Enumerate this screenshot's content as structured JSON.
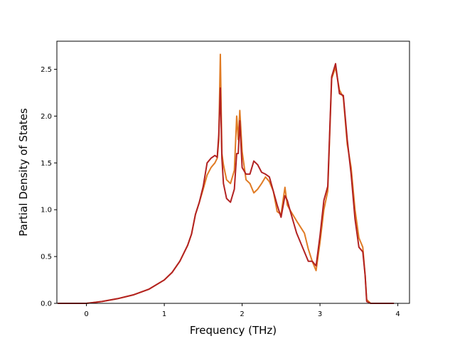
{
  "chart_data": {
    "type": "line",
    "title": "",
    "xlabel": "Frequency (THz)",
    "ylabel": "Partial Density of States",
    "xlim": [
      -0.38,
      4.15
    ],
    "ylim": [
      0,
      2.8
    ],
    "xticks": [
      0,
      1,
      2,
      3,
      4
    ],
    "xtick_labels": [
      "0",
      "1",
      "2",
      "3",
      "4"
    ],
    "yticks": [
      0.0,
      0.5,
      1.0,
      1.5,
      2.0,
      2.5
    ],
    "ytick_labels": [
      "0.0",
      "0.5",
      "1.0",
      "1.5",
      "2.0",
      "2.5"
    ],
    "grid": false,
    "legend": "none",
    "series": [
      {
        "color": "#e07b24",
        "x": [
          -0.37,
          -0.2,
          0.0,
          0.2,
          0.4,
          0.6,
          0.8,
          1.0,
          1.1,
          1.2,
          1.3,
          1.35,
          1.4,
          1.45,
          1.5,
          1.55,
          1.6,
          1.65,
          1.68,
          1.7,
          1.72,
          1.74,
          1.76,
          1.8,
          1.85,
          1.9,
          1.93,
          1.95,
          1.97,
          2.0,
          2.05,
          2.1,
          2.15,
          2.2,
          2.25,
          2.3,
          2.35,
          2.4,
          2.45,
          2.5,
          2.55,
          2.58,
          2.62,
          2.7,
          2.8,
          2.85,
          2.9,
          2.95,
          3.0,
          3.05,
          3.1,
          3.15,
          3.2,
          3.25,
          3.3,
          3.35,
          3.4,
          3.45,
          3.5,
          3.55,
          3.58,
          3.6,
          3.65,
          3.7,
          3.8,
          3.95
        ],
        "y": [
          0.0,
          0.0,
          0.0,
          0.02,
          0.05,
          0.09,
          0.15,
          0.25,
          0.33,
          0.45,
          0.62,
          0.74,
          0.95,
          1.08,
          1.22,
          1.37,
          1.45,
          1.5,
          1.55,
          1.75,
          2.66,
          1.6,
          1.48,
          1.32,
          1.28,
          1.42,
          2.0,
          1.75,
          2.06,
          1.62,
          1.32,
          1.28,
          1.18,
          1.22,
          1.28,
          1.35,
          1.3,
          1.2,
          0.98,
          0.95,
          1.24,
          1.05,
          0.99,
          0.88,
          0.75,
          0.58,
          0.45,
          0.35,
          0.65,
          1.0,
          1.2,
          2.4,
          2.52,
          2.28,
          2.2,
          1.7,
          1.45,
          1.0,
          0.7,
          0.6,
          0.3,
          0.04,
          0.0,
          0.0,
          0.0,
          0.0
        ]
      },
      {
        "color": "#b22222",
        "x": [
          -0.37,
          -0.2,
          0.0,
          0.2,
          0.4,
          0.6,
          0.8,
          1.0,
          1.1,
          1.2,
          1.3,
          1.35,
          1.4,
          1.45,
          1.5,
          1.55,
          1.6,
          1.65,
          1.68,
          1.7,
          1.72,
          1.74,
          1.76,
          1.8,
          1.85,
          1.9,
          1.93,
          1.95,
          1.97,
          2.0,
          2.05,
          2.1,
          2.15,
          2.2,
          2.25,
          2.3,
          2.35,
          2.4,
          2.45,
          2.5,
          2.55,
          2.58,
          2.62,
          2.7,
          2.8,
          2.85,
          2.9,
          2.95,
          3.0,
          3.05,
          3.1,
          3.15,
          3.2,
          3.25,
          3.3,
          3.35,
          3.4,
          3.45,
          3.5,
          3.55,
          3.58,
          3.6,
          3.65,
          3.7,
          3.8,
          3.95
        ],
        "y": [
          0.0,
          0.0,
          0.0,
          0.02,
          0.05,
          0.09,
          0.15,
          0.25,
          0.33,
          0.45,
          0.62,
          0.74,
          0.95,
          1.08,
          1.25,
          1.5,
          1.55,
          1.58,
          1.56,
          1.8,
          2.3,
          1.55,
          1.28,
          1.12,
          1.08,
          1.22,
          1.6,
          1.6,
          1.95,
          1.45,
          1.38,
          1.38,
          1.52,
          1.48,
          1.4,
          1.38,
          1.35,
          1.2,
          1.05,
          0.92,
          1.15,
          1.1,
          0.98,
          0.75,
          0.55,
          0.45,
          0.45,
          0.4,
          0.72,
          1.1,
          1.25,
          2.42,
          2.56,
          2.24,
          2.22,
          1.75,
          1.38,
          0.9,
          0.6,
          0.55,
          0.3,
          0.02,
          0.0,
          0.0,
          0.0,
          0.0
        ]
      }
    ]
  }
}
